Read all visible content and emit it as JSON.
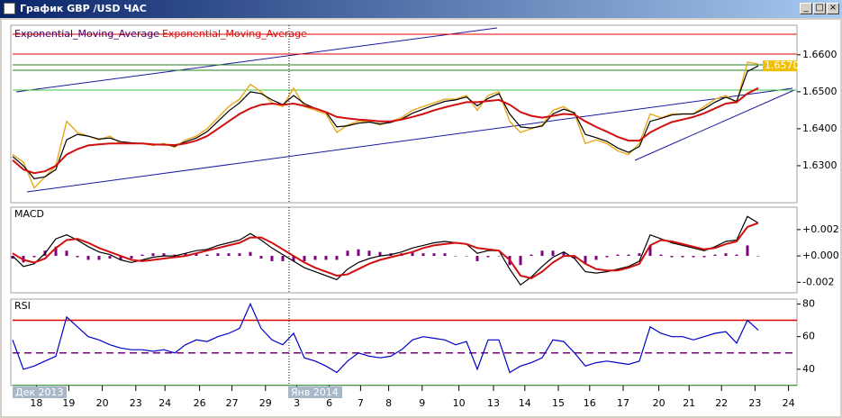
{
  "window": {
    "title": "График GBP /USD ЧАС"
  },
  "chart_data": [
    {
      "type": "line",
      "ylim": [
        1.62,
        1.668
      ],
      "yticks": [
        {
          "value": 1.63,
          "label": "1.6300"
        },
        {
          "value": 1.64,
          "label": "1.6400"
        },
        {
          "value": 1.65,
          "label": "1.6500"
        },
        {
          "value": 1.66,
          "label": "1.6600"
        }
      ],
      "xlim": [
        0,
        72
      ],
      "last_label": {
        "value": 1.657,
        "label": "1.6570"
      },
      "series": [
        {
          "color": "#e8a818",
          "values": [
            1.633,
            1.631,
            1.624,
            1.627,
            1.63,
            1.642,
            1.639,
            1.638,
            1.637,
            1.638,
            1.636,
            1.636,
            1.636,
            1.6355,
            1.636,
            1.635,
            1.637,
            1.638,
            1.64,
            1.643,
            1.646,
            1.648,
            1.652,
            1.65,
            1.647,
            1.646,
            1.651,
            1.646,
            1.645,
            1.644,
            1.639,
            1.641,
            1.642,
            1.642,
            1.641,
            1.642,
            1.643,
            1.645,
            1.646,
            1.647,
            1.648,
            1.648,
            1.649,
            1.645,
            1.649,
            1.65,
            1.642,
            1.639,
            1.64,
            1.641,
            1.645,
            1.646,
            1.644,
            1.636,
            1.637,
            1.636,
            1.634,
            1.633,
            1.636,
            1.644,
            1.643,
            1.644,
            1.644,
            1.644,
            1.646,
            1.648,
            1.649,
            1.647,
            1.658,
            1.6575
          ]
        },
        {
          "name": "Exponential_Moving_Average",
          "color": "#000000",
          "label_color": "#400060",
          "values": [
            1.6325,
            1.63,
            1.6265,
            1.627,
            1.629,
            1.637,
            1.6385,
            1.638,
            1.6372,
            1.6375,
            1.6365,
            1.6362,
            1.636,
            1.6357,
            1.6358,
            1.6353,
            1.6365,
            1.6375,
            1.6392,
            1.642,
            1.6448,
            1.647,
            1.65,
            1.6495,
            1.6478,
            1.6465,
            1.649,
            1.6468,
            1.6455,
            1.6445,
            1.6405,
            1.6408,
            1.6415,
            1.6418,
            1.6413,
            1.6417,
            1.6426,
            1.6442,
            1.6453,
            1.6464,
            1.6474,
            1.6478,
            1.6486,
            1.6462,
            1.6482,
            1.6495,
            1.644,
            1.6405,
            1.6402,
            1.6407,
            1.644,
            1.6453,
            1.6443,
            1.6385,
            1.6376,
            1.6366,
            1.6348,
            1.6336,
            1.6352,
            1.642,
            1.6428,
            1.6437,
            1.644,
            1.644,
            1.6454,
            1.6472,
            1.6485,
            1.6474,
            1.6555,
            1.657
          ]
        },
        {
          "name": "Exponential_Moving_Average",
          "color": "#d01010",
          "label_color": "#d01010",
          "values": [
            1.6315,
            1.629,
            1.628,
            1.6285,
            1.63,
            1.633,
            1.6345,
            1.6355,
            1.6358,
            1.636,
            1.636,
            1.636,
            1.636,
            1.6358,
            1.6357,
            1.6356,
            1.636,
            1.6368,
            1.638,
            1.64,
            1.642,
            1.644,
            1.6455,
            1.6465,
            1.6468,
            1.6465,
            1.6468,
            1.6462,
            1.6455,
            1.6445,
            1.6432,
            1.6428,
            1.6425,
            1.6423,
            1.642,
            1.642,
            1.6425,
            1.6432,
            1.644,
            1.645,
            1.6458,
            1.6465,
            1.6472,
            1.6472,
            1.6475,
            1.6478,
            1.6465,
            1.6445,
            1.6435,
            1.643,
            1.6435,
            1.644,
            1.6438,
            1.642,
            1.6405,
            1.6392,
            1.6378,
            1.6368,
            1.6368,
            1.639,
            1.6405,
            1.6418,
            1.6425,
            1.6432,
            1.6442,
            1.6455,
            1.6468,
            1.6472,
            1.6495,
            1.651
          ]
        }
      ]
    },
    {
      "type": "line",
      "title": "MACD",
      "ylim": [
        -0.0028,
        0.0037
      ],
      "yticks": [
        {
          "value": -0.002,
          "label": "-0.002"
        },
        {
          "value": 0,
          "label": "+0.000"
        },
        {
          "value": 0.002,
          "label": "+0.002"
        }
      ],
      "xlim": [
        0,
        72
      ],
      "series": [
        {
          "type": "bar",
          "color": "#800080",
          "values": [
            -0.0002,
            -0.0005,
            -0.0001,
            0.0004,
            0.0007,
            0.0004,
            -0.0001,
            -0.0003,
            -0.0003,
            -0.0002,
            -0.0003,
            -0.0002,
            0.0001,
            0.0002,
            0.0002,
            0.0001,
            0.0002,
            0.0002,
            0.0001,
            0.0002,
            0.0002,
            0.0002,
            0.0003,
            -0.0002,
            -0.0004,
            -0.0004,
            -0.0004,
            -0.0004,
            -0.0003,
            -0.0003,
            -0.0003,
            0.0004,
            0.0005,
            0.0004,
            0.0003,
            0.0002,
            0.0002,
            0.0003,
            0.0002,
            0.0002,
            0.0002,
            0,
            0,
            -0.0004,
            -0.0001,
            0,
            -0.0007,
            -0.0007,
            0.0001,
            0.0004,
            0.0004,
            0.0003,
            -0.0002,
            -0.0006,
            -0.0003,
            -0.0001,
            0.0001,
            0.0001,
            0.0002,
            0.0008,
            0.0001,
            -0.0001,
            -0.0001,
            -0.0001,
            -0.0001,
            0.0001,
            0.0002,
            0.0001,
            0.0008,
            0
          ]
        },
        {
          "color": "#000000",
          "values": [
            0,
            -0.0008,
            -0.0006,
            0.0002,
            0.0013,
            0.0016,
            0.0012,
            0.0007,
            0.0003,
            0.0001,
            -0.0003,
            -0.0005,
            -0.0003,
            -0.0001,
            0,
            0,
            0.0002,
            0.0004,
            0.0005,
            0.0008,
            0.001,
            0.0012,
            0.0017,
            0.0012,
            0.0006,
            0.0001,
            -0.0004,
            -0.0009,
            -0.0012,
            -0.0015,
            -0.0018,
            -0.001,
            -0.0005,
            -0.0002,
            0,
            0.0001,
            0.0003,
            0.0006,
            0.0008,
            0.001,
            0.0011,
            0.001,
            0.0009,
            0.0002,
            0.0004,
            0.0004,
            -0.001,
            -0.0022,
            -0.0016,
            -0.0008,
            -0.0001,
            0.0003,
            -0.0002,
            -0.0012,
            -0.0013,
            -0.0012,
            -0.001,
            -0.0008,
            -0.0004,
            0.0016,
            0.0013,
            0.001,
            0.0008,
            0.0006,
            0.0004,
            0.0007,
            0.0011,
            0.0012,
            0.003,
            0.0025
          ]
        },
        {
          "color": "#d01010",
          "values": [
            0.0002,
            -0.0003,
            -0.0005,
            -0.0002,
            0.0006,
            0.0012,
            0.0013,
            0.001,
            0.0006,
            0.0003,
            0,
            -0.0003,
            -0.0004,
            -0.0003,
            -0.0002,
            -0.0001,
            0,
            0.0002,
            0.0004,
            0.0006,
            0.0008,
            0.001,
            0.0014,
            0.0014,
            0.001,
            0.0005,
            0,
            -0.0005,
            -0.0009,
            -0.0012,
            -0.0015,
            -0.0014,
            -0.001,
            -0.0006,
            -0.0003,
            -0.0001,
            0.0001,
            0.0003,
            0.0006,
            0.0008,
            0.0009,
            0.001,
            0.0009,
            0.0006,
            0.0005,
            0.0004,
            -0.0003,
            -0.0015,
            -0.0017,
            -0.0012,
            -0.0005,
            0,
            0,
            -0.0006,
            -0.001,
            -0.0011,
            -0.0011,
            -0.0009,
            -0.0006,
            0.0008,
            0.0012,
            0.0011,
            0.0009,
            0.0007,
            0.0005,
            0.0006,
            0.0009,
            0.0011,
            0.0022,
            0.0025
          ]
        }
      ]
    },
    {
      "type": "line",
      "title": "RSI",
      "ylim": [
        30,
        83
      ],
      "yticks": [
        40,
        60,
        80
      ],
      "xlim": [
        0,
        72
      ],
      "levels": [
        {
          "value": 70,
          "color": "#e00000"
        },
        {
          "value": 50,
          "color": "#800080",
          "dashed": true
        },
        {
          "value": 30,
          "color": "#008000"
        }
      ],
      "xticks": [
        {
          "value": 2.2,
          "label": "18"
        },
        {
          "value": 5.2,
          "label": "19"
        },
        {
          "value": 8.3,
          "label": "20"
        },
        {
          "value": 11.4,
          "label": "23"
        },
        {
          "value": 14.1,
          "label": "24"
        },
        {
          "value": 17.3,
          "label": "26"
        },
        {
          "value": 20.3,
          "label": "27"
        },
        {
          "value": 23.4,
          "label": "29"
        },
        {
          "value": 26.3,
          "label": "3"
        },
        {
          "value": 29.3,
          "label": "6"
        },
        {
          "value": 32.2,
          "label": "7"
        },
        {
          "value": 34.8,
          "label": "8"
        },
        {
          "value": 37.9,
          "label": "9"
        },
        {
          "value": 41.3,
          "label": "10"
        },
        {
          "value": 44.5,
          "label": "13"
        },
        {
          "value": 47.4,
          "label": "14"
        },
        {
          "value": 50.5,
          "label": "15"
        },
        {
          "value": 53.4,
          "label": "16"
        },
        {
          "value": 56.5,
          "label": "17"
        },
        {
          "value": 59.8,
          "label": "20"
        },
        {
          "value": 62.6,
          "label": "21"
        },
        {
          "value": 65.6,
          "label": "22"
        },
        {
          "value": 68.7,
          "label": "23"
        },
        {
          "value": 71.8,
          "label": "24"
        }
      ],
      "month_labels": [
        {
          "value": 0,
          "label": "Дек 2013"
        },
        {
          "value": 25.5,
          "label": "Янв 2014"
        }
      ],
      "series": [
        {
          "color": "#0000c8",
          "values": [
            58,
            40,
            42,
            45,
            48,
            72,
            66,
            60,
            58,
            55,
            53,
            52,
            52,
            51,
            52,
            50,
            55,
            58,
            57,
            60,
            62,
            65,
            80,
            65,
            58,
            55,
            62,
            47,
            45,
            42,
            38,
            45,
            50,
            48,
            47,
            48,
            52,
            58,
            60,
            59,
            58,
            55,
            57,
            40,
            58,
            58,
            38,
            42,
            44,
            47,
            58,
            57,
            50,
            42,
            44,
            45,
            44,
            43,
            45,
            66,
            62,
            60,
            60,
            58,
            60,
            62,
            63,
            56,
            70,
            64
          ]
        }
      ]
    }
  ]
}
